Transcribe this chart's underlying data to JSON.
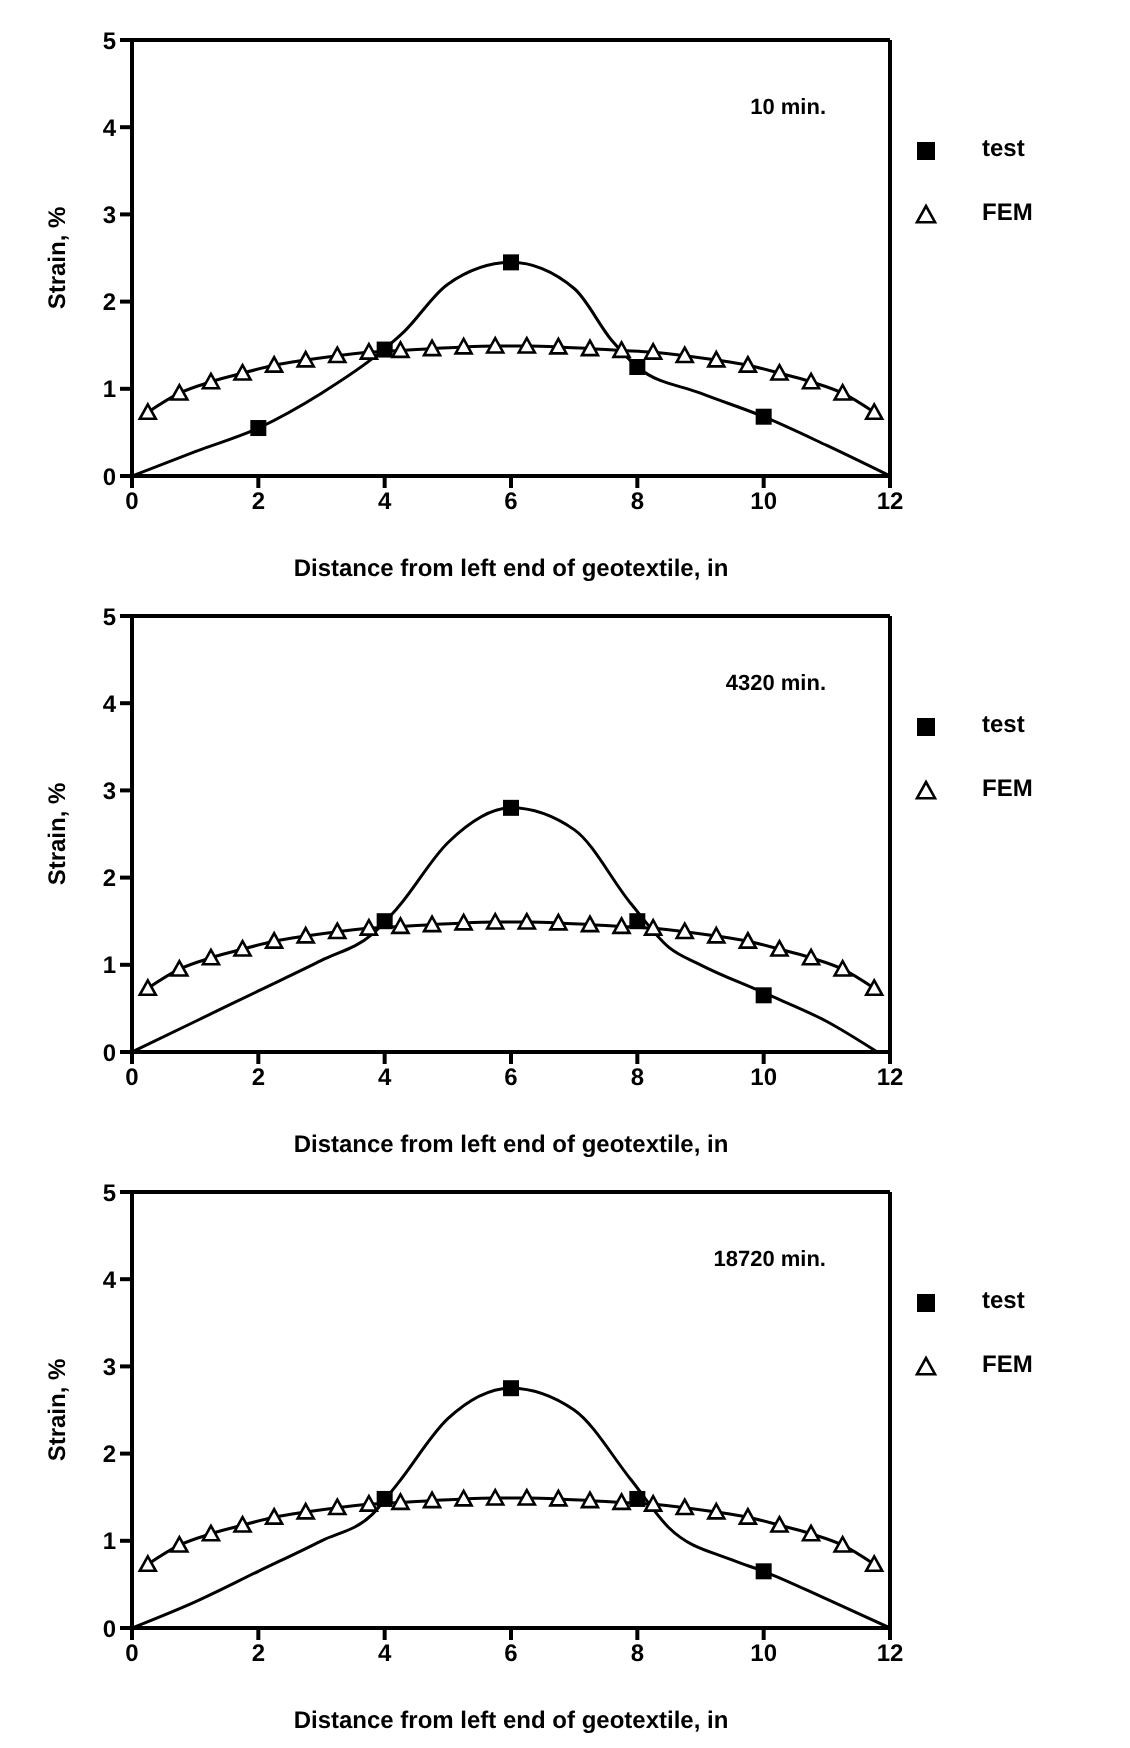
{
  "chart_data": [
    {
      "type": "line",
      "annotations": [
        "10 min."
      ],
      "xlabel": "Distance from left end of geotextile, in",
      "ylabel": "Strain, %",
      "xlim": [
        0,
        12
      ],
      "ylim": [
        0,
        5
      ],
      "xticks": [
        0,
        2,
        4,
        6,
        8,
        10,
        12
      ],
      "yticks": [
        0,
        1,
        2,
        3,
        4,
        5
      ],
      "grid": false,
      "legend": "right",
      "series": [
        {
          "name": "test",
          "type": "scatter",
          "marker": "square",
          "color": "#000000",
          "x": [
            2,
            4,
            6,
            8,
            10
          ],
          "values": [
            0.55,
            1.45,
            2.45,
            1.25,
            0.68
          ]
        },
        {
          "type": "line",
          "marker": "none",
          "color": "#000000",
          "x": [
            0,
            1,
            2,
            3,
            3.9,
            4.3,
            5,
            6,
            7,
            7.6,
            8,
            9,
            10,
            11,
            12
          ],
          "values": [
            0,
            0.28,
            0.55,
            0.95,
            1.4,
            1.65,
            2.2,
            2.45,
            2.15,
            1.55,
            1.25,
            0.95,
            0.68,
            0.35,
            0
          ]
        },
        {
          "name": "FEM",
          "type": "line",
          "marker": "triangle",
          "color": "#000000",
          "x": [
            0.25,
            0.75,
            1.25,
            1.75,
            2.25,
            2.75,
            3.25,
            3.75,
            4.25,
            4.75,
            5.25,
            5.75,
            6.25,
            6.75,
            7.25,
            7.75,
            8.25,
            8.75,
            9.25,
            9.75,
            10.25,
            10.75,
            11.25,
            11.75
          ],
          "values": [
            0.73,
            0.95,
            1.08,
            1.18,
            1.27,
            1.33,
            1.38,
            1.42,
            1.44,
            1.46,
            1.48,
            1.49,
            1.49,
            1.48,
            1.46,
            1.44,
            1.42,
            1.38,
            1.33,
            1.27,
            1.18,
            1.08,
            0.95,
            0.73
          ]
        }
      ]
    },
    {
      "type": "line",
      "annotations": [
        "4320 min."
      ],
      "xlabel": "Distance from left end of geotextile, in",
      "ylabel": "Strain, %",
      "xlim": [
        0,
        12
      ],
      "ylim": [
        0,
        5
      ],
      "xticks": [
        0,
        2,
        4,
        6,
        8,
        10,
        12
      ],
      "yticks": [
        0,
        1,
        2,
        3,
        4,
        5
      ],
      "grid": false,
      "legend": "right",
      "series": [
        {
          "name": "test",
          "type": "scatter",
          "marker": "square",
          "color": "#000000",
          "x": [
            4,
            6,
            8,
            10
          ],
          "values": [
            1.5,
            2.8,
            1.5,
            0.65
          ]
        },
        {
          "type": "line",
          "marker": "none",
          "color": "#000000",
          "x": [
            0,
            1,
            2,
            3,
            3.8,
            4.2,
            5,
            6,
            7,
            7.9,
            8.5,
            9,
            10,
            11,
            11.8
          ],
          "values": [
            0,
            0.35,
            0.7,
            1.05,
            1.35,
            1.65,
            2.4,
            2.8,
            2.55,
            1.7,
            1.2,
            1.0,
            0.68,
            0.35,
            0
          ]
        },
        {
          "name": "FEM",
          "type": "line",
          "marker": "triangle",
          "color": "#000000",
          "x": [
            0.25,
            0.75,
            1.25,
            1.75,
            2.25,
            2.75,
            3.25,
            3.75,
            4.25,
            4.75,
            5.25,
            5.75,
            6.25,
            6.75,
            7.25,
            7.75,
            8.25,
            8.75,
            9.25,
            9.75,
            10.25,
            10.75,
            11.25,
            11.75
          ],
          "values": [
            0.73,
            0.95,
            1.08,
            1.18,
            1.27,
            1.33,
            1.38,
            1.42,
            1.44,
            1.46,
            1.48,
            1.49,
            1.49,
            1.48,
            1.46,
            1.44,
            1.42,
            1.38,
            1.33,
            1.27,
            1.18,
            1.08,
            0.95,
            0.73
          ]
        }
      ]
    },
    {
      "type": "line",
      "annotations": [
        "18720 min."
      ],
      "xlabel": "Distance from left end of geotextile, in",
      "ylabel": "Strain, %",
      "xlim": [
        0,
        12
      ],
      "ylim": [
        0,
        5
      ],
      "xticks": [
        0,
        2,
        4,
        6,
        8,
        10,
        12
      ],
      "yticks": [
        0,
        1,
        2,
        3,
        4,
        5
      ],
      "grid": false,
      "legend": "right",
      "series": [
        {
          "name": "test",
          "type": "scatter",
          "marker": "square",
          "color": "#000000",
          "x": [
            4,
            6,
            8,
            10
          ],
          "values": [
            1.48,
            2.75,
            1.48,
            0.65
          ]
        },
        {
          "type": "line",
          "marker": "none",
          "color": "#000000",
          "x": [
            0,
            1,
            2,
            3,
            3.8,
            4.2,
            5,
            6,
            7,
            7.9,
            8.5,
            9.5,
            10,
            11,
            12
          ],
          "values": [
            0,
            0.3,
            0.65,
            1.0,
            1.3,
            1.65,
            2.4,
            2.75,
            2.5,
            1.7,
            1.15,
            0.78,
            0.65,
            0.33,
            0
          ]
        },
        {
          "name": "FEM",
          "type": "line",
          "marker": "triangle",
          "color": "#000000",
          "x": [
            0.25,
            0.75,
            1.25,
            1.75,
            2.25,
            2.75,
            3.25,
            3.75,
            4.25,
            4.75,
            5.25,
            5.75,
            6.25,
            6.75,
            7.25,
            7.75,
            8.25,
            8.75,
            9.25,
            9.75,
            10.25,
            10.75,
            11.25,
            11.75
          ],
          "values": [
            0.73,
            0.95,
            1.08,
            1.18,
            1.27,
            1.33,
            1.38,
            1.42,
            1.44,
            1.46,
            1.48,
            1.49,
            1.49,
            1.48,
            1.46,
            1.44,
            1.42,
            1.38,
            1.33,
            1.27,
            1.18,
            1.08,
            0.95,
            0.73
          ]
        }
      ]
    }
  ]
}
